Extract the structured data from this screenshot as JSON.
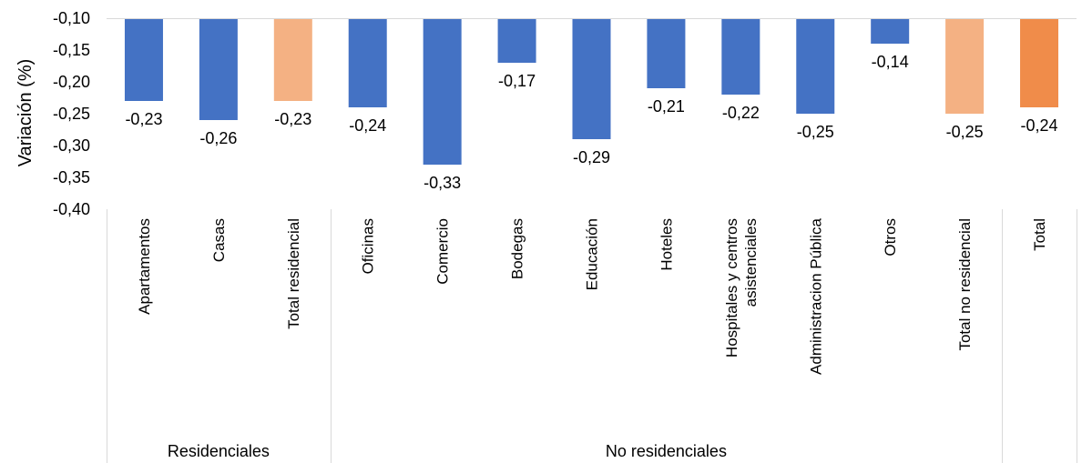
{
  "chart_data": {
    "type": "bar",
    "ylabel": "Variación (%)",
    "ylim": [
      -0.4,
      -0.1
    ],
    "y_ticks": [
      "-0,10",
      "-0,15",
      "-0,20",
      "-0,25",
      "-0,30",
      "-0,35",
      "-0,40"
    ],
    "y_tick_values": [
      -0.1,
      -0.15,
      -0.2,
      -0.25,
      -0.3,
      -0.35,
      -0.4
    ],
    "bar_baseline": -0.1,
    "grid": false,
    "legend": "none",
    "categories": [
      [
        "Apartamentos"
      ],
      [
        "Casas"
      ],
      [
        "Total residencial"
      ],
      [
        "Oficinas"
      ],
      [
        "Comercio"
      ],
      [
        "Bodegas"
      ],
      [
        "Educación"
      ],
      [
        "Hoteles"
      ],
      [
        "Hospitales y centros",
        "asistenciales"
      ],
      [
        "Administracion Pública"
      ],
      [
        "Otros"
      ],
      [
        "Total no residencial"
      ],
      [
        "Total"
      ]
    ],
    "values": [
      -0.23,
      -0.26,
      -0.23,
      -0.24,
      -0.33,
      -0.17,
      -0.29,
      -0.21,
      -0.22,
      -0.25,
      -0.14,
      -0.25,
      -0.24
    ],
    "value_labels": [
      "-0,23",
      "-0,26",
      "-0,23",
      "-0,24",
      "-0,33",
      "-0,17",
      "-0,29",
      "-0,21",
      "-0,22",
      "-0,25",
      "-0,14",
      "-0,25",
      "-0,24"
    ],
    "bar_colors": [
      "#4472C4",
      "#4472C4",
      "#F4B183",
      "#4472C4",
      "#4472C4",
      "#4472C4",
      "#4472C4",
      "#4472C4",
      "#4472C4",
      "#4472C4",
      "#4472C4",
      "#F4B183",
      "#F08C4A"
    ],
    "groups": [
      {
        "label": "Residenciales",
        "start": 0,
        "end": 2
      },
      {
        "label": "No residenciales",
        "start": 3,
        "end": 11
      },
      {
        "label": "",
        "start": 12,
        "end": 12
      }
    ]
  }
}
